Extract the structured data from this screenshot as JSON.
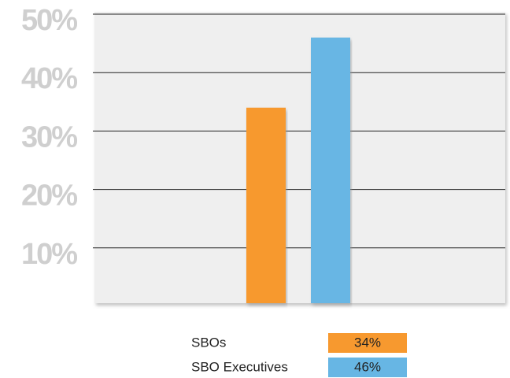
{
  "chart_data": {
    "type": "bar",
    "categories": [
      null
    ],
    "series": [
      {
        "name": "SBOs",
        "color": "#f7992f",
        "values": [
          34
        ],
        "value_labels": [
          "34%"
        ]
      },
      {
        "name": "SBO Executives",
        "color": "#67b6e4",
        "values": [
          46
        ],
        "value_labels": [
          "46%"
        ]
      }
    ],
    "ylim": [
      0,
      50
    ],
    "yticks": [
      {
        "value": 10,
        "label": "10%"
      },
      {
        "value": 20,
        "label": "20%"
      },
      {
        "value": 30,
        "label": "30%"
      },
      {
        "value": 40,
        "label": "40%"
      },
      {
        "value": 50,
        "label": "50%"
      }
    ],
    "grid": true
  }
}
